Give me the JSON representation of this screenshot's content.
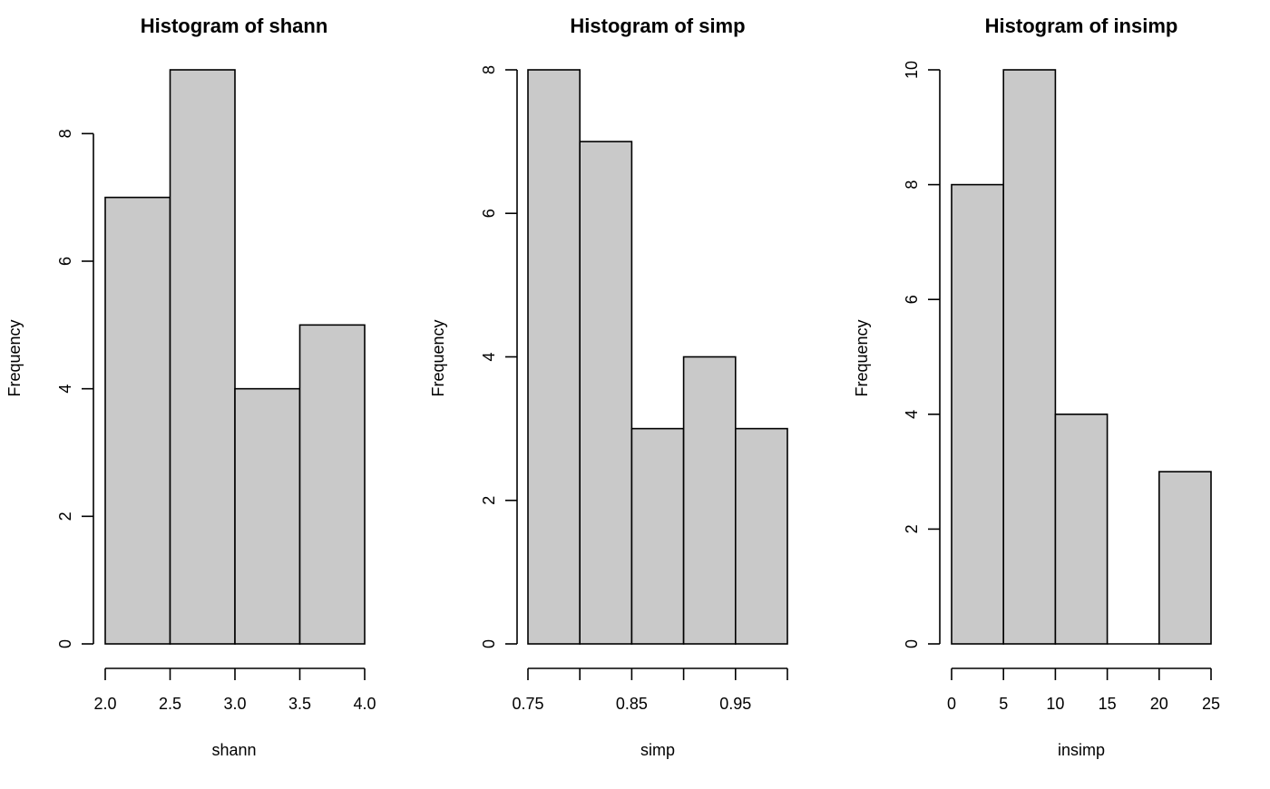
{
  "chart_data": [
    {
      "type": "bar",
      "title": "Histogram of shann",
      "xlabel": "shann",
      "ylabel": "Frequency",
      "bins": [
        [
          2.0,
          2.5
        ],
        [
          2.5,
          3.0
        ],
        [
          3.0,
          3.5
        ],
        [
          3.5,
          4.0
        ]
      ],
      "values": [
        7,
        9,
        4,
        5
      ],
      "xticks": [
        "2.0",
        "2.5",
        "3.0",
        "3.5",
        "4.0"
      ],
      "xtick_values": [
        2.0,
        2.5,
        3.0,
        3.5,
        4.0
      ],
      "xlim": [
        2.0,
        4.0
      ],
      "yticks": [
        "0",
        "2",
        "4",
        "6",
        "8"
      ],
      "ytick_values": [
        0,
        2,
        4,
        6,
        8
      ],
      "ylim": [
        0,
        9
      ],
      "bar_color": "#c9c9c9",
      "grid": false
    },
    {
      "type": "bar",
      "title": "Histogram of simp",
      "xlabel": "simp",
      "ylabel": "Frequency",
      "bins": [
        [
          0.75,
          0.8
        ],
        [
          0.8,
          0.85
        ],
        [
          0.85,
          0.9
        ],
        [
          0.9,
          0.95
        ],
        [
          0.95,
          1.0
        ]
      ],
      "values": [
        8,
        7,
        3,
        4,
        3
      ],
      "xticks": [
        "0.75",
        "",
        "0.85",
        "",
        "0.95",
        ""
      ],
      "xtick_values": [
        0.75,
        0.8,
        0.85,
        0.9,
        0.95,
        1.0
      ],
      "xlim": [
        0.75,
        1.0
      ],
      "yticks": [
        "0",
        "2",
        "4",
        "6",
        "8"
      ],
      "ytick_values": [
        0,
        2,
        4,
        6,
        8
      ],
      "ylim": [
        0,
        8
      ],
      "bar_color": "#c9c9c9",
      "grid": false
    },
    {
      "type": "bar",
      "title": "Histogram of insimp",
      "xlabel": "insimp",
      "ylabel": "Frequency",
      "bins": [
        [
          0,
          5
        ],
        [
          5,
          10
        ],
        [
          10,
          15
        ],
        [
          15,
          20
        ],
        [
          20,
          25
        ]
      ],
      "values": [
        8,
        10,
        4,
        0,
        3
      ],
      "xticks": [
        "0",
        "5",
        "10",
        "15",
        "20",
        "25"
      ],
      "xtick_values": [
        0,
        5,
        10,
        15,
        20,
        25
      ],
      "xlim": [
        0,
        25
      ],
      "yticks": [
        "0",
        "2",
        "4",
        "6",
        "8",
        "10"
      ],
      "ytick_values": [
        0,
        2,
        4,
        6,
        8,
        10
      ],
      "ylim": [
        0,
        10
      ],
      "bar_color": "#c9c9c9",
      "grid": false
    }
  ]
}
